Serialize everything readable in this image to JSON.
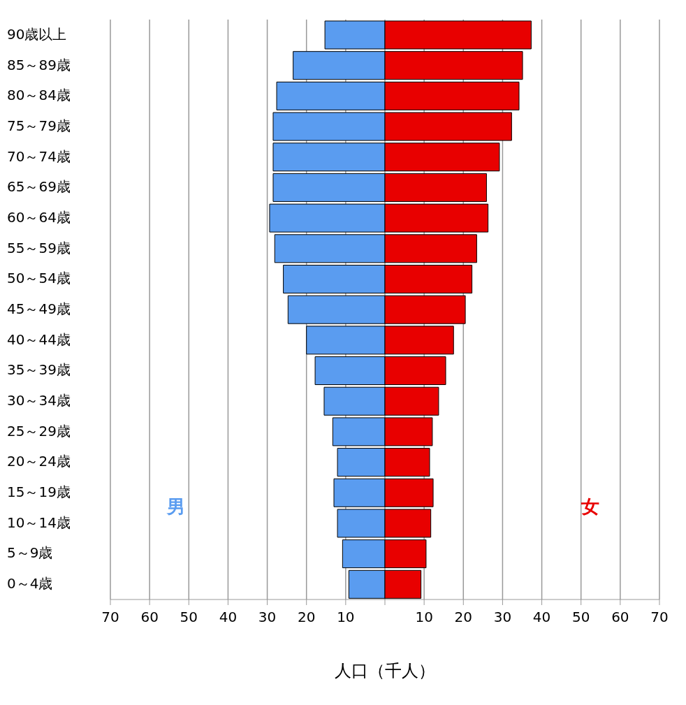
{
  "chart_data": {
    "type": "bar",
    "orientation": "horizontal",
    "stacked": true,
    "xlabel": "人口（千人）",
    "categories": [
      "90歳以上",
      "85～89歳",
      "80～84歳",
      "75～79歳",
      "70～74歳",
      "65～69歳",
      "60～64歳",
      "55～59歳",
      "50～54歳",
      "45～49歳",
      "40～44歳",
      "35～39歳",
      "30～34歳",
      "25～29歳",
      "20～24歳",
      "15～19歳",
      "10～14歳",
      "5～9歳",
      "0～4歳"
    ],
    "series": [
      {
        "name": "男",
        "color": "#5a9cf0",
        "values": [
          -15.3,
          -23.4,
          -27.6,
          -28.5,
          -28.5,
          -28.5,
          -29.4,
          -28.1,
          -25.9,
          -24.7,
          -20,
          -17.8,
          -15.5,
          -13.3,
          -12.1,
          -13,
          -12.1,
          -10.8,
          -9.2
        ]
      },
      {
        "name": "女",
        "color": "#e80000",
        "values": [
          37.3,
          35.1,
          34.2,
          32.3,
          29.2,
          25.9,
          26.3,
          23.4,
          22.2,
          20.5,
          17.5,
          15.5,
          13.7,
          12.1,
          11.4,
          12.3,
          11.7,
          10.5,
          9.2
        ]
      }
    ],
    "xlim": [
      -70,
      70
    ],
    "xticks": [
      {
        "value": -70,
        "label": "70"
      },
      {
        "value": -60,
        "label": "60"
      },
      {
        "value": -50,
        "label": "50"
      },
      {
        "value": -40,
        "label": "40"
      },
      {
        "value": -30,
        "label": "30"
      },
      {
        "value": -20,
        "label": "20"
      },
      {
        "value": -10,
        "label": "10"
      },
      {
        "value": 0,
        "label": null
      },
      10,
      20,
      30,
      40,
      50,
      60,
      70
    ],
    "grid": "x"
  }
}
